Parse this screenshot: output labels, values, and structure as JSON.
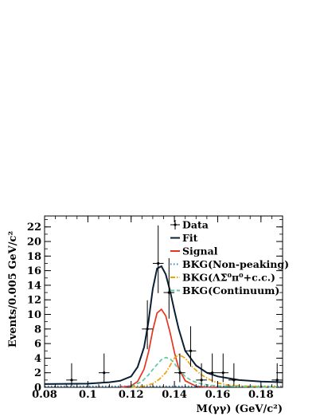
{
  "chart_data": {
    "type": "line",
    "xlabel": "M(γγ) (GeV/c²)",
    "ylabel": "Events/0.005 GeV/c²",
    "xlim": [
      0.08,
      0.19
    ],
    "ylim": [
      0,
      23.5
    ],
    "x_ticks": [
      "0.08",
      "0.1",
      "0.12",
      "0.14",
      "0.16",
      "0.18"
    ],
    "y_ticks": [
      "0",
      "2",
      "4",
      "6",
      "8",
      "10",
      "12",
      "14",
      "16",
      "18",
      "20",
      "22"
    ],
    "legend_position": "top-right",
    "data_points": {
      "name": "Data",
      "x": [
        0.0925,
        0.1075,
        0.1275,
        0.1325,
        0.1375,
        0.1425,
        0.1475,
        0.1525,
        0.1575,
        0.1625,
        0.1675,
        0.1875
      ],
      "y": [
        1,
        2,
        8,
        17,
        13,
        2,
        5,
        1,
        2,
        2,
        1,
        1
      ],
      "yerr_low": [
        0.83,
        1.29,
        2.77,
        4.08,
        3.58,
        1.29,
        2.16,
        0.83,
        1.29,
        1.29,
        0.83,
        0.83
      ],
      "yerr_high": [
        2.3,
        2.64,
        3.94,
        5.2,
        4.72,
        2.64,
        3.38,
        2.3,
        2.64,
        2.64,
        2.3,
        2.3
      ]
    },
    "series": [
      {
        "name": "Fit",
        "color": "#0a1f33",
        "style": "solid",
        "x": [
          0.08,
          0.1,
          0.11,
          0.115,
          0.12,
          0.123,
          0.126,
          0.128,
          0.13,
          0.132,
          0.134,
          0.136,
          0.138,
          0.14,
          0.142,
          0.145,
          0.15,
          0.155,
          0.16,
          0.17,
          0.18,
          0.19
        ],
        "y": [
          0.45,
          0.5,
          0.7,
          0.9,
          1.5,
          2.8,
          5.5,
          9.0,
          13.5,
          16.3,
          16.6,
          15.5,
          13.2,
          10.5,
          8.0,
          5.0,
          3.0,
          2.0,
          1.5,
          1.0,
          0.8,
          0.7
        ]
      },
      {
        "name": "Signal",
        "color": "#e8331f",
        "style": "solid",
        "x": [
          0.115,
          0.12,
          0.123,
          0.126,
          0.128,
          0.13,
          0.132,
          0.134,
          0.136,
          0.138,
          0.14,
          0.142,
          0.145,
          0.15,
          0.155,
          0.16
        ],
        "y": [
          0,
          0.2,
          0.8,
          2.5,
          4.8,
          7.8,
          10.2,
          10.7,
          9.8,
          7.5,
          4.8,
          2.6,
          0.9,
          0.15,
          0.03,
          0
        ]
      },
      {
        "name": "BKG(Non-peaking)",
        "color": "#3b83c4",
        "style": "dotted",
        "x": [
          0.08,
          0.19
        ],
        "y": [
          0.15,
          0.15
        ]
      },
      {
        "name": "BKG(ΛΣ̄⁰π⁰+c.c.)",
        "color": "#f0a000",
        "style": "dashdot",
        "x": [
          0.12,
          0.125,
          0.13,
          0.133,
          0.136,
          0.138,
          0.14,
          0.142,
          0.145,
          0.148,
          0.152,
          0.156,
          0.16,
          0.165,
          0.17,
          0.18,
          0.19
        ],
        "y": [
          0,
          0.1,
          0.5,
          1.1,
          2.0,
          3.0,
          4.0,
          4.5,
          4.0,
          2.9,
          1.8,
          1.1,
          0.6,
          0.3,
          0.2,
          0.1,
          0.05
        ]
      },
      {
        "name": "BKG(Continuum)",
        "color": "#5fc8a0",
        "style": "dashed",
        "x": [
          0.12,
          0.125,
          0.128,
          0.131,
          0.134,
          0.136,
          0.138,
          0.14,
          0.142,
          0.145,
          0.148,
          0.152,
          0.156,
          0.16,
          0.17,
          0.18,
          0.19
        ],
        "y": [
          0.1,
          0.8,
          1.7,
          2.8,
          3.8,
          4.1,
          3.9,
          3.3,
          2.4,
          1.5,
          0.9,
          0.5,
          0.3,
          0.2,
          0.1,
          0.05,
          0.03
        ]
      }
    ],
    "legend": [
      "Data",
      "Fit",
      "Signal",
      "BKG(Non-peaking)",
      "BKG(ΛΣ̄⁰π⁰+c.c.)",
      "BKG(Continuum)"
    ]
  }
}
